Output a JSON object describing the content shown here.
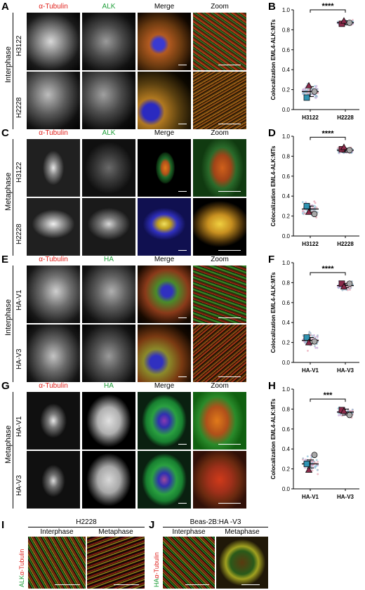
{
  "panel_letters": [
    "A",
    "B",
    "C",
    "D",
    "E",
    "F",
    "G",
    "H",
    "I",
    "J"
  ],
  "rows": [
    {
      "phase": "Interphase",
      "columns": [
        "α-Tubulin",
        "ALK",
        "Merge",
        "Zoom"
      ],
      "cells": [
        "H3122",
        "H2228"
      ]
    },
    {
      "phase": "Metaphase",
      "columns": [
        "α-Tubulin",
        "ALK",
        "Merge",
        "Zoom"
      ],
      "cells": [
        "H3122",
        "H2228"
      ]
    },
    {
      "phase": "Interphase",
      "columns": [
        "α-Tubulin",
        "HA",
        "Merge",
        "Zoom"
      ],
      "cells": [
        "HA-V1",
        "HA-V3"
      ]
    },
    {
      "phase": "Metaphase",
      "columns": [
        "α-Tubulin",
        "HA",
        "Merge",
        "Zoom"
      ],
      "cells": [
        "HA-V1",
        "HA-V3"
      ]
    }
  ],
  "bottom": {
    "I": {
      "title": "H2228",
      "columns": [
        "Interphase",
        "Metaphase"
      ],
      "side": [
        "ALK",
        "α-Tubulin"
      ]
    },
    "J": {
      "title": "Beas-2B:HA -V3",
      "columns": [
        "Interphase",
        "Metaphase"
      ],
      "side": [
        "HA",
        "α-Tubulin"
      ]
    }
  },
  "colors": {
    "tubulin_red": "#e0201b",
    "target_green": "#1f9e3a",
    "v1_square": "#2f93b3",
    "v3_square": "#8a2a4a",
    "triangle": "#8a2a4a",
    "circle": "#a9a9a9"
  },
  "chart_data": [
    {
      "type": "scatter",
      "panel": "B",
      "ylabel": "Colocalization EML4-ALK:MTs",
      "categories": [
        "H3122",
        "H2228"
      ],
      "ylim": [
        0,
        1
      ],
      "yticks": [
        "0.0",
        "0.2",
        "0.4",
        "0.6",
        "0.8",
        "1.0"
      ],
      "means": [
        0.18,
        0.87
      ],
      "sd": [
        0.05,
        0.02
      ],
      "spread": [
        0.09,
        0.03
      ],
      "replicates": [
        [
          0.12,
          0.24,
          0.18
        ],
        [
          0.86,
          0.89,
          0.87
        ]
      ],
      "significance": "****"
    },
    {
      "type": "scatter",
      "panel": "D",
      "ylabel": "Colocalization EML4-ALK:MTs",
      "categories": [
        "H3122",
        "H2228"
      ],
      "ylim": [
        0,
        1
      ],
      "yticks": [
        "0.0",
        "0.2",
        "0.4",
        "0.6",
        "0.8",
        "1.0"
      ],
      "means": [
        0.27,
        0.86
      ],
      "sd": [
        0.03,
        0.02
      ],
      "spread": [
        0.1,
        0.04
      ],
      "replicates": [
        [
          0.3,
          0.24,
          0.22
        ],
        [
          0.87,
          0.89,
          0.86
        ]
      ],
      "significance": "****"
    },
    {
      "type": "scatter",
      "panel": "F",
      "ylabel": "Colocalization EML4-ALK:MTs",
      "categories": [
        "HA-V1",
        "HA-V3"
      ],
      "ylim": [
        0,
        1
      ],
      "yticks": [
        "0.0",
        "0.2",
        "0.4",
        "0.6",
        "0.8",
        "1.0"
      ],
      "means": [
        0.22,
        0.77
      ],
      "sd": [
        0.03,
        0.02
      ],
      "spread": [
        0.12,
        0.06
      ],
      "replicates": [
        [
          0.25,
          0.2,
          0.21
        ],
        [
          0.79,
          0.76,
          0.79
        ]
      ],
      "significance": "****"
    },
    {
      "type": "scatter",
      "panel": "H",
      "ylabel": "Colocalization EML4-ALK:MTs",
      "categories": [
        "HA-V1",
        "HA-V3"
      ],
      "ylim": [
        0,
        1
      ],
      "yticks": [
        "0.0",
        "0.2",
        "0.4",
        "0.6",
        "0.8",
        "1.0"
      ],
      "means": [
        0.25,
        0.77
      ],
      "sd": [
        0.04,
        0.03
      ],
      "spread": [
        0.12,
        0.06
      ],
      "replicates": [
        [
          0.25,
          0.19,
          0.34
        ],
        [
          0.79,
          0.78,
          0.74
        ]
      ],
      "significance": "***"
    }
  ]
}
